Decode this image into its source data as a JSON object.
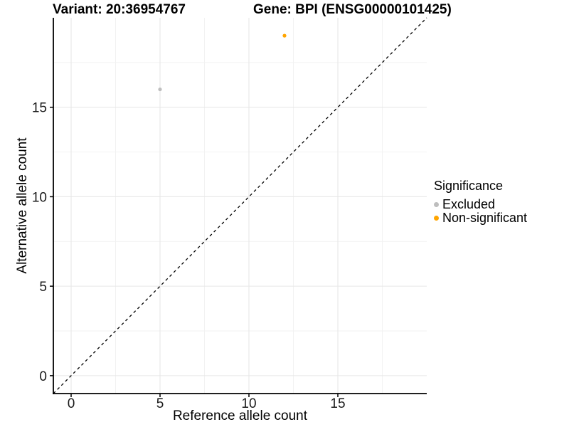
{
  "chart_data": {
    "type": "scatter",
    "title_left": "Variant: 20:36954767",
    "title_right": "Gene: BPI (ENSG00000101425)",
    "xlabel": "Reference allele count",
    "ylabel": "Alternative allele count",
    "xlim": [
      -1,
      20
    ],
    "ylim": [
      -1,
      20
    ],
    "x_ticks": [
      0,
      5,
      10,
      15
    ],
    "y_ticks": [
      0,
      5,
      10,
      15
    ],
    "x_minor_ticks": [
      2.5,
      7.5,
      12.5,
      17.5
    ],
    "y_minor_ticks": [
      2.5,
      7.5,
      12.5,
      17.5
    ],
    "grid": true,
    "legend": {
      "title": "Significance",
      "position": "right"
    },
    "reference_line": {
      "type": "identity",
      "style": "dashed",
      "from": [
        -1,
        -1
      ],
      "to": [
        20,
        20
      ],
      "color": "#000000"
    },
    "series": [
      {
        "name": "Excluded",
        "color": "#BEBEBE",
        "points": [
          {
            "x": 5,
            "y": 16
          }
        ]
      },
      {
        "name": "Non-significant",
        "color": "#FFA500",
        "points": [
          {
            "x": 12,
            "y": 19
          }
        ]
      }
    ],
    "colors": {
      "grid_major": "#e6e6e6",
      "grid_minor": "#f2f2f2",
      "axis": "#000000",
      "tick_text": "#1a1a1a"
    }
  }
}
